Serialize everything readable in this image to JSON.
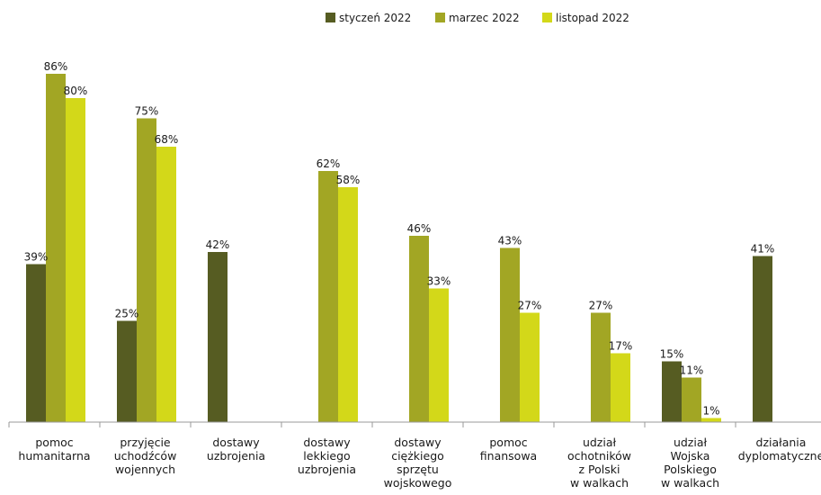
{
  "chart_data": {
    "type": "bar",
    "categories": [
      [
        "pomoc",
        "humanitarna"
      ],
      [
        "przyjęcie",
        "uchodźców",
        "wojennych"
      ],
      [
        "dostawy",
        "uzbrojenia"
      ],
      [
        "dostawy",
        "lekkiego",
        "uzbrojenia"
      ],
      [
        "dostawy",
        "ciężkiego",
        "sprzętu",
        "wojskowego"
      ],
      [
        "pomoc",
        "finansowa"
      ],
      [
        "udział",
        "ochotników",
        "z Polski",
        "w walkach"
      ],
      [
        "udział",
        "Wojska",
        "Polskiego",
        "w walkach"
      ],
      [
        "działania",
        "dyplomatyczne"
      ]
    ],
    "series": [
      {
        "name": "styczeń 2022",
        "color": "#565c22",
        "values": [
          39,
          25,
          42,
          null,
          null,
          null,
          null,
          15,
          41
        ],
        "labels": [
          "39%",
          "25%",
          "42%",
          null,
          null,
          null,
          null,
          "15%",
          "41%"
        ]
      },
      {
        "name": "marzec 2022",
        "color": "#a2a624",
        "values": [
          86,
          75,
          null,
          62,
          46,
          43,
          27,
          11,
          null
        ],
        "labels": [
          "86%",
          "75%",
          null,
          "62%",
          "46%",
          "43%",
          "27%",
          "11%",
          null
        ]
      },
      {
        "name": "listopad 2022",
        "color": "#d3d819",
        "values": [
          80,
          68,
          null,
          58,
          33,
          27,
          17,
          1,
          null
        ],
        "labels": [
          "80%",
          "68%",
          null,
          "58%",
          "33%",
          "27%",
          "17%",
          "1%",
          null
        ]
      }
    ],
    "ylim": [
      0,
      100
    ],
    "grid": false,
    "legend": "top-center"
  }
}
